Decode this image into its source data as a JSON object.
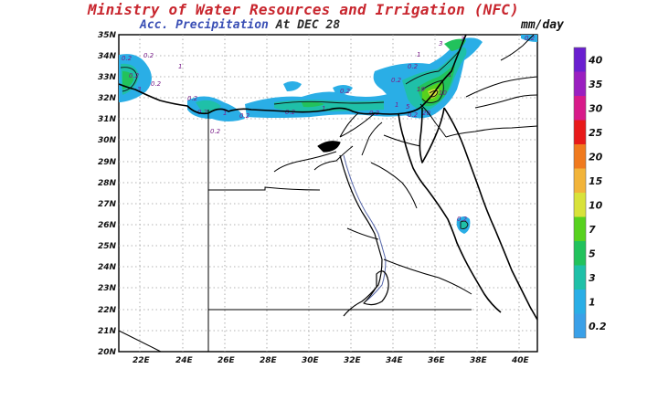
{
  "title": {
    "line1": "Ministry of Water Resources and Irrigation (NFC)",
    "line2_a": "Acc. Precipitation",
    "line2_b": "At DEC 28",
    "units": "mm/day"
  },
  "map": {
    "lat_labels": [
      "35N",
      "34N",
      "33N",
      "32N",
      "31N",
      "30N",
      "29N",
      "28N",
      "27N",
      "26N",
      "25N",
      "24N",
      "23N",
      "22N",
      "21N",
      "20N"
    ],
    "lon_labels": [
      "22E",
      "24E",
      "26E",
      "28E",
      "30E",
      "32E",
      "34E",
      "36E",
      "38E",
      "40E"
    ],
    "contour_labels": [
      "0.2",
      "0.2",
      "0.2",
      "0.2",
      "0.2",
      "0.2",
      "0.2",
      "0.2",
      "0.2",
      "0.2",
      "0.2",
      "0.2",
      "0.2",
      "0.2",
      "0.2",
      "1",
      "1",
      "1",
      "1",
      "1",
      "1",
      "3",
      "3",
      "3",
      "10",
      "10",
      "5",
      "20",
      "0.2"
    ]
  },
  "colorbar": {
    "labels": [
      "40",
      "35",
      "30",
      "25",
      "20",
      "15",
      "10",
      "7",
      "5",
      "3",
      "1",
      "0.2"
    ],
    "colors": [
      "#6a1fd0",
      "#9a1fc0",
      "#d81a8a",
      "#e81a1a",
      "#f07a1e",
      "#f2b43a",
      "#d8e23a",
      "#57d11e",
      "#22c25c",
      "#1fc0a8",
      "#2aaee6",
      "#3aa0e8"
    ]
  }
}
